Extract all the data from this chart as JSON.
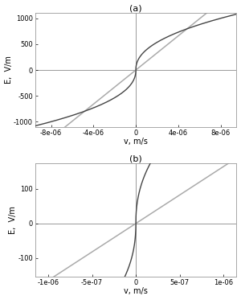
{
  "title_a": "(a)",
  "title_b": "(b)",
  "xlabel": "v, m/s",
  "ylabel": "E,  V/m",
  "xlim_a": [
    -9.5e-06,
    9.5e-06
  ],
  "ylim_a": [
    -1100,
    1100
  ],
  "xlim_b": [
    -1.15e-06,
    1.15e-06
  ],
  "ylim_b": [
    -155,
    175
  ],
  "xticks_a": [
    -8e-06,
    -4e-06,
    0,
    4e-06,
    8e-06
  ],
  "xtick_labels_a": [
    "-8e-06",
    "-4e-06",
    "0",
    "4e-06",
    "8e-06"
  ],
  "xticks_b": [
    -1e-06,
    -5e-07,
    0,
    5e-07,
    1e-06
  ],
  "xtick_labels_b": [
    "-1e-06",
    "-5e-07",
    "0",
    "5e-07",
    "1e-06"
  ],
  "yticks_a": [
    -1000,
    -500,
    0,
    500,
    1000
  ],
  "ytick_labels_a": [
    "-1000",
    "-500",
    "0",
    "500",
    "1000"
  ],
  "yticks_b": [
    -100,
    0,
    100
  ],
  "ytick_labels_b": [
    "-100",
    "0",
    "100"
  ],
  "solid_color": "#444444",
  "linear_color": "#aaaaaa",
  "axis_line_color": "#999999",
  "background_color": "#ffffff",
  "fig_background": "#ffffff",
  "A": 1000.0,
  "v_ref": 8e-06,
  "alpha": 0.45,
  "linear_slope": 165000000.0
}
